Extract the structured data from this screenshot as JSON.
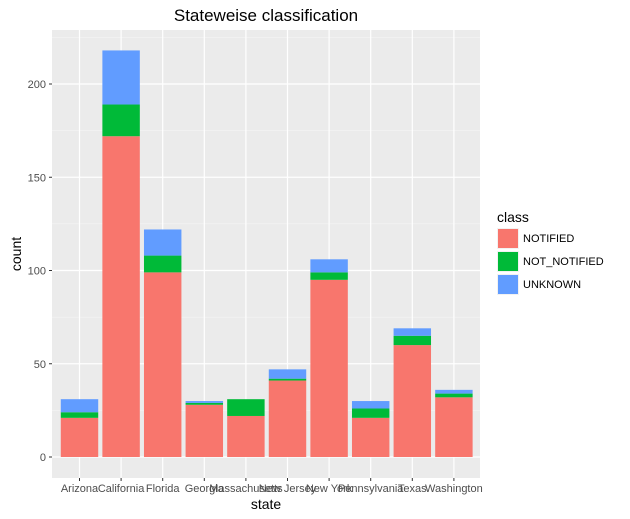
{
  "chart_data": {
    "type": "bar",
    "stacked": true,
    "title": "Stateweise classification",
    "xlabel": "state",
    "ylabel": "count",
    "ylim": [
      0,
      230
    ],
    "yticks": [
      0,
      50,
      100,
      150,
      200
    ],
    "grid": true,
    "legend_title": "class",
    "legend_position": "right",
    "categories": [
      "Arizona",
      "California",
      "Florida",
      "Georgia",
      "Massachusetts",
      "New Jersey",
      "New York",
      "Pennsylvania",
      "Texas",
      "Washington"
    ],
    "series": [
      {
        "name": "NOTIFIED",
        "color": "#F8766D",
        "values": [
          21,
          172,
          99,
          28,
          22,
          41,
          95,
          21,
          60,
          32
        ]
      },
      {
        "name": "NOT_NOTIFIED",
        "color": "#00BA38",
        "values": [
          3,
          17,
          9,
          1,
          9,
          1,
          4,
          5,
          5,
          2
        ]
      },
      {
        "name": "UNKNOWN",
        "color": "#619CFF",
        "values": [
          7,
          29,
          14,
          1,
          0,
          5,
          7,
          4,
          4,
          2
        ]
      }
    ]
  }
}
